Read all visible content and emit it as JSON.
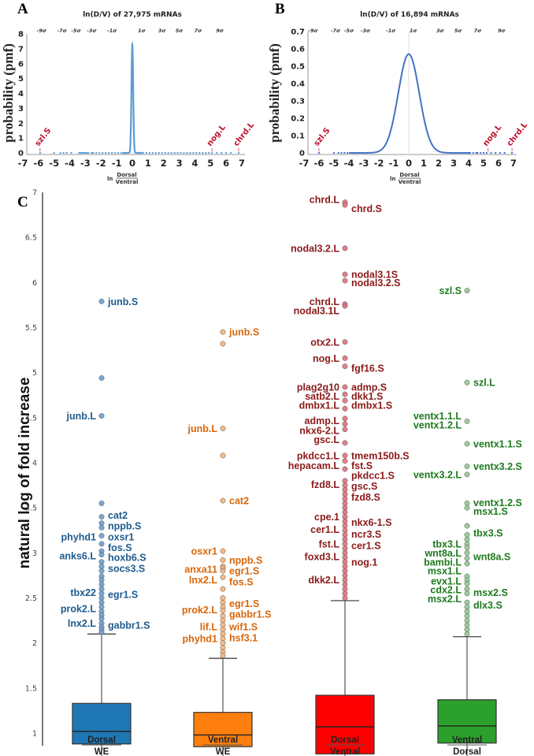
{
  "chart_data": [
    {
      "id": "A",
      "type": "line",
      "panel_label": "A",
      "title": "ln(D/V) of 27,975 mRNAs",
      "xlabel": {
        "prefix": "ln",
        "numerator": "Dorsal",
        "denominator": "Ventral"
      },
      "ylabel": "probability (pmf)",
      "xlim": [
        -7,
        7
      ],
      "ylim": [
        0,
        8
      ],
      "xticks": [
        "-7",
        "-6",
        "-5",
        "-4",
        "-3",
        "-2",
        "-1",
        "0",
        "1",
        "2",
        "3",
        "4",
        "5",
        "6",
        "7"
      ],
      "yticks": [
        "0",
        "1",
        "2",
        "3",
        "4",
        "5",
        "6",
        "7",
        "8"
      ],
      "sigma_ticks": [
        {
          "label": "-9σ",
          "x": -5.8
        },
        {
          "label": "-7σ",
          "x": -4.5
        },
        {
          "label": "-5σ",
          "x": -3.6
        },
        {
          "label": "-3σ",
          "x": -2.6
        },
        {
          "label": "-1σ",
          "x": -1.3
        },
        {
          "label": "1σ",
          "x": 0.6
        },
        {
          "label": "3σ",
          "x": 1.9
        },
        {
          "label": "5σ",
          "x": 3.0
        },
        {
          "label": "7σ",
          "x": 4.2
        },
        {
          "label": "9σ",
          "x": 5.6
        }
      ],
      "curve": {
        "type": "gaussian",
        "mean": 0.0,
        "sd": 0.055,
        "peak": 7.3,
        "color": "#5b9bd5"
      },
      "tail_points_x": [
        -5.9,
        -5.0,
        -4.6,
        -4.4,
        -4.2,
        -3.9,
        -3.4,
        -3.3,
        -3.2,
        -3.1,
        -3.0,
        -2.9,
        -2.8,
        -2.6,
        -2.5,
        -2.3,
        -2.1,
        -1.9,
        -1.7,
        -1.5,
        -1.3,
        -1.1,
        -0.9,
        -0.7,
        -0.5,
        0.5,
        0.7,
        0.9,
        1.1,
        1.3,
        1.5,
        1.7,
        1.9,
        2.1,
        2.3,
        2.5,
        2.7,
        2.9,
        3.1,
        3.3,
        3.5,
        3.7,
        3.9,
        4.1,
        4.3,
        4.5,
        4.7,
        4.9,
        5.1,
        5.4,
        5.7,
        6.0,
        6.3,
        6.8
      ],
      "annotations": [
        {
          "text": "szl.S",
          "x": -5.9
        },
        {
          "text": "nog.L",
          "x": 5.1
        },
        {
          "text": "chrd.L",
          "x": 6.8
        }
      ]
    },
    {
      "id": "B",
      "type": "line",
      "panel_label": "B",
      "title": "ln(D/V) of 16,894 mRNAs",
      "xlabel": {
        "prefix": "ln",
        "numerator": "Dorsal",
        "denominator": "Ventral"
      },
      "ylabel": "probability (pmf)",
      "xlim": [
        -7,
        7
      ],
      "ylim": [
        0,
        0.7
      ],
      "xticks": [
        "-7",
        "-6",
        "-5",
        "-4",
        "-3",
        "-2",
        "-1",
        "0",
        "1",
        "2",
        "3",
        "4",
        "5",
        "6",
        "7"
      ],
      "yticks": [
        "0",
        "0.1",
        "0.2",
        "0.3",
        "0.4",
        "0.5",
        "0.6",
        "0.7"
      ],
      "sigma_ticks": [
        {
          "label": "-9σ",
          "x": -6.4
        },
        {
          "label": "-7σ",
          "x": -4.9
        },
        {
          "label": "-5σ",
          "x": -4.0
        },
        {
          "label": "-3σ",
          "x": -2.9
        },
        {
          "label": "-1σ",
          "x": -1.2
        },
        {
          "label": "1σ",
          "x": 0.3
        },
        {
          "label": "3σ",
          "x": 2.1
        },
        {
          "label": "5σ",
          "x": 3.3
        },
        {
          "label": "7σ",
          "x": 4.6
        },
        {
          "label": "9σ",
          "x": 6.2
        }
      ],
      "curve": {
        "type": "gaussian",
        "mean": 0.0,
        "sd": 0.7,
        "peak": 0.57,
        "color": "#4472c4"
      },
      "tail_points_x": [
        -6.0,
        -5.0,
        -4.7,
        -4.5,
        -4.3,
        -4.1,
        -3.8,
        -3.5,
        3.6,
        3.8,
        4.0,
        4.1,
        4.3,
        4.5,
        4.6,
        4.8,
        5.0,
        5.2,
        5.5,
        5.8,
        6.1,
        6.4,
        6.9
      ],
      "annotations": [
        {
          "text": "szl.S",
          "x": -6.0
        },
        {
          "text": "nog.L",
          "x": 5.3
        },
        {
          "text": "chrd.L",
          "x": 6.9
        }
      ]
    },
    {
      "id": "C",
      "type": "box",
      "panel_label": "C",
      "ylabel": "natural log of fold increase",
      "ylim": [
        0.55,
        7
      ],
      "yticks": [
        "1",
        "1.5",
        "2",
        "2.5",
        "3",
        "3.5",
        "4",
        "4.5",
        "5",
        "5.5",
        "6",
        "6.5",
        "7"
      ],
      "groups": [
        {
          "numerator": "Dorsal",
          "denominator": "WE",
          "color": "#1f77b4",
          "point_color": "#6a9fcf",
          "label_color": "#1f5b8e",
          "box": {
            "whisker_low": 0.7,
            "q1": 0.88,
            "median": 1.02,
            "q3": 1.33,
            "whisker_high": 2.1
          },
          "outliers": [
            5.79,
            4.94,
            4.52,
            3.55,
            3.4,
            3.33,
            3.28,
            3.19,
            3.1,
            3.02,
            2.98,
            2.9,
            2.85,
            2.8,
            2.74,
            2.7,
            2.65,
            2.6,
            2.55,
            2.5,
            2.45,
            2.4,
            2.35,
            2.31,
            2.27,
            2.22,
            2.18,
            2.15,
            2.12
          ],
          "labels": [
            {
              "text": "junb.S",
              "y": 5.79,
              "side": "right"
            },
            {
              "text": "junb.L",
              "y": 4.52,
              "side": "left"
            },
            {
              "text": "cat2",
              "y": 3.42,
              "side": "right"
            },
            {
              "text": "nppb.S",
              "y": 3.3,
              "side": "right"
            },
            {
              "text": "phyhd1",
              "y": 3.18,
              "side": "left"
            },
            {
              "text": "oxsr1",
              "y": 3.18,
              "side": "right"
            },
            {
              "text": "fos.S",
              "y": 3.06,
              "side": "right"
            },
            {
              "text": "anks6.L",
              "y": 2.97,
              "side": "left"
            },
            {
              "text": "hoxb6.S",
              "y": 2.95,
              "side": "right"
            },
            {
              "text": "socs3.S",
              "y": 2.83,
              "side": "right"
            },
            {
              "text": "tbx22",
              "y": 2.56,
              "side": "left"
            },
            {
              "text": "egr1.S",
              "y": 2.54,
              "side": "right"
            },
            {
              "text": "prok2.L",
              "y": 2.38,
              "side": "left"
            },
            {
              "text": "lnx2.L",
              "y": 2.22,
              "side": "left"
            },
            {
              "text": "gabbr1.S",
              "y": 2.2,
              "side": "right"
            }
          ]
        },
        {
          "numerator": "Ventral",
          "denominator": "WE",
          "color": "#ff7f0e",
          "point_color": "#f5b27a",
          "label_color": "#d9660a",
          "box": {
            "whisker_low": 0.72,
            "q1": 0.85,
            "median": 0.98,
            "q3": 1.23,
            "whisker_high": 1.83
          },
          "outliers": [
            5.45,
            5.32,
            4.38,
            4.08,
            3.58,
            3.02,
            2.92,
            2.85,
            2.83,
            2.8,
            2.73,
            2.6,
            2.5,
            2.45,
            2.4,
            2.36,
            2.3,
            2.25,
            2.2,
            2.15,
            2.1,
            2.05,
            2.0,
            1.95,
            1.9,
            1.86
          ],
          "labels": [
            {
              "text": "junb.S",
              "y": 5.45,
              "side": "right"
            },
            {
              "text": "junb.L",
              "y": 4.38,
              "side": "left"
            },
            {
              "text": "cat2",
              "y": 3.58,
              "side": "right"
            },
            {
              "text": "osxr1",
              "y": 3.02,
              "side": "left"
            },
            {
              "text": "nppb.S",
              "y": 2.92,
              "side": "right"
            },
            {
              "text": "anxa11",
              "y": 2.82,
              "side": "left"
            },
            {
              "text": "egr1.S",
              "y": 2.8,
              "side": "right"
            },
            {
              "text": "lnx2.L",
              "y": 2.7,
              "side": "left"
            },
            {
              "text": "fos.S",
              "y": 2.68,
              "side": "right"
            },
            {
              "text": "egr1.S",
              "y": 2.44,
              "side": "right"
            },
            {
              "text": "prok2.L",
              "y": 2.37,
              "side": "left"
            },
            {
              "text": "gabbr1.S",
              "y": 2.32,
              "side": "right"
            },
            {
              "text": "lif.L",
              "y": 2.18,
              "side": "left"
            },
            {
              "text": "wif1.S",
              "y": 2.18,
              "side": "right"
            },
            {
              "text": "phyhd1",
              "y": 2.05,
              "side": "left"
            },
            {
              "text": "hsf3.1",
              "y": 2.06,
              "side": "right"
            }
          ]
        },
        {
          "numerator": "Dorsal",
          "denominator": "Ventral",
          "color": "#ff0000",
          "point_color": "#e0707a",
          "label_color": "#8b1a1a",
          "box": {
            "whisker_low": 0.74,
            "q1": 0.77,
            "median": 1.07,
            "q3": 1.42,
            "whisker_high": 2.47
          },
          "outliers": [
            6.89,
            6.86,
            6.38,
            6.09,
            6.02,
            5.76,
            5.74,
            5.34,
            5.16,
            5.07,
            4.84,
            4.76,
            4.69,
            4.6,
            4.49,
            4.43,
            4.37,
            4.22,
            4.08,
            4.02,
            3.93,
            3.8,
            3.75,
            3.7,
            3.65,
            3.6,
            3.55,
            3.5,
            3.45,
            3.4,
            3.35,
            3.3,
            3.25,
            3.2,
            3.15,
            3.1,
            3.05,
            3.0,
            2.95,
            2.9,
            2.85,
            2.8,
            2.75,
            2.7,
            2.65,
            2.6,
            2.55,
            2.5
          ],
          "labels": [
            {
              "text": "chrd.L",
              "y": 6.92,
              "side": "left"
            },
            {
              "text": "chrd.S",
              "y": 6.82,
              "side": "right"
            },
            {
              "text": "nodal3.2.L",
              "y": 6.38,
              "side": "left"
            },
            {
              "text": "nodal3.1S",
              "y": 6.09,
              "side": "right"
            },
            {
              "text": "nodal3.2.S",
              "y": 6.0,
              "side": "right"
            },
            {
              "text": "chrd.L",
              "y": 5.79,
              "side": "left"
            },
            {
              "text": "nodal3.1L",
              "y": 5.69,
              "side": "left"
            },
            {
              "text": "otx2.L",
              "y": 5.34,
              "side": "left"
            },
            {
              "text": "nog.L",
              "y": 5.16,
              "side": "left"
            },
            {
              "text": "fgf16.S",
              "y": 5.05,
              "side": "right"
            },
            {
              "text": "plag2g10",
              "y": 4.84,
              "side": "left"
            },
            {
              "text": "admp.S",
              "y": 4.84,
              "side": "right"
            },
            {
              "text": "satb2.L",
              "y": 4.74,
              "side": "left"
            },
            {
              "text": "dkk1.S",
              "y": 4.74,
              "side": "right"
            },
            {
              "text": "dmbx1.L",
              "y": 4.64,
              "side": "left"
            },
            {
              "text": "dmbx1.S",
              "y": 4.64,
              "side": "right"
            },
            {
              "text": "admp.L",
              "y": 4.47,
              "side": "left"
            },
            {
              "text": "nkx6-2.L",
              "y": 4.36,
              "side": "left"
            },
            {
              "text": "gsc.L",
              "y": 4.26,
              "side": "left"
            },
            {
              "text": "pkdcc1.L",
              "y": 4.08,
              "side": "left"
            },
            {
              "text": "tmem150b.S",
              "y": 4.08,
              "side": "right"
            },
            {
              "text": "fst.S",
              "y": 3.97,
              "side": "right"
            },
            {
              "text": "hepacam.L",
              "y": 3.97,
              "side": "left"
            },
            {
              "text": "pkdcc1.S",
              "y": 3.86,
              "side": "right"
            },
            {
              "text": "fzd8.L",
              "y": 3.76,
              "side": "left"
            },
            {
              "text": "gsc.S",
              "y": 3.74,
              "side": "right"
            },
            {
              "text": "fzd8.S",
              "y": 3.62,
              "side": "right"
            },
            {
              "text": "cpe.1",
              "y": 3.4,
              "side": "left"
            },
            {
              "text": "nkx6-1.S",
              "y": 3.34,
              "side": "right"
            },
            {
              "text": "cer1.L",
              "y": 3.26,
              "side": "left"
            },
            {
              "text": "ncr3.S",
              "y": 3.21,
              "side": "right"
            },
            {
              "text": "fst.L",
              "y": 3.1,
              "side": "left"
            },
            {
              "text": "cer1.S",
              "y": 3.08,
              "side": "right"
            },
            {
              "text": "foxd3.L",
              "y": 2.96,
              "side": "left"
            },
            {
              "text": "nog.1",
              "y": 2.9,
              "side": "right"
            },
            {
              "text": "dkk2.L",
              "y": 2.7,
              "side": "left"
            }
          ]
        },
        {
          "numerator": "Ventral",
          "denominator": "Dorsal",
          "color": "#2ca02c",
          "point_color": "#8fc98f",
          "label_color": "#1e7a1e",
          "box": {
            "whisker_low": 0.7,
            "q1": 0.89,
            "median": 1.08,
            "q3": 1.37,
            "whisker_high": 2.07
          },
          "outliers": [
            5.91,
            4.89,
            4.46,
            4.21,
            3.96,
            3.87,
            3.55,
            3.5,
            3.3,
            3.2,
            3.15,
            3.1,
            3.06,
            3.0,
            2.94,
            2.88,
            2.74,
            2.7,
            2.66,
            2.6,
            2.55,
            2.45,
            2.4,
            2.35,
            2.3,
            2.25,
            2.2,
            2.15,
            2.1
          ],
          "labels": [
            {
              "text": "szl.S",
              "y": 5.91,
              "side": "left"
            },
            {
              "text": "szl.L",
              "y": 4.89,
              "side": "right"
            },
            {
              "text": "ventx1.1.L",
              "y": 4.52,
              "side": "left"
            },
            {
              "text": "ventx1.2.L",
              "y": 4.42,
              "side": "left"
            },
            {
              "text": "ventx1.1.S",
              "y": 4.21,
              "side": "right"
            },
            {
              "text": "ventx3.2.S",
              "y": 3.96,
              "side": "right"
            },
            {
              "text": "ventx3.2.L",
              "y": 3.87,
              "side": "left"
            },
            {
              "text": "ventx1.2.S",
              "y": 3.56,
              "side": "right"
            },
            {
              "text": "msx1.S",
              "y": 3.46,
              "side": "right"
            },
            {
              "text": "tbx3.S",
              "y": 3.22,
              "side": "right"
            },
            {
              "text": "tbx3.L",
              "y": 3.1,
              "side": "left"
            },
            {
              "text": "wnt8a.L",
              "y": 3.0,
              "side": "left"
            },
            {
              "text": "wnt8a.S",
              "y": 2.96,
              "side": "right"
            },
            {
              "text": "bambi.L",
              "y": 2.9,
              "side": "left"
            },
            {
              "text": "msx1.L",
              "y": 2.8,
              "side": "left"
            },
            {
              "text": "evx1.L",
              "y": 2.69,
              "side": "left"
            },
            {
              "text": "cdx2.L",
              "y": 2.59,
              "side": "left"
            },
            {
              "text": "msx2.S",
              "y": 2.56,
              "side": "right"
            },
            {
              "text": "msx2.L",
              "y": 2.49,
              "side": "left"
            },
            {
              "text": "dlx3.S",
              "y": 2.42,
              "side": "right"
            }
          ]
        }
      ]
    }
  ]
}
